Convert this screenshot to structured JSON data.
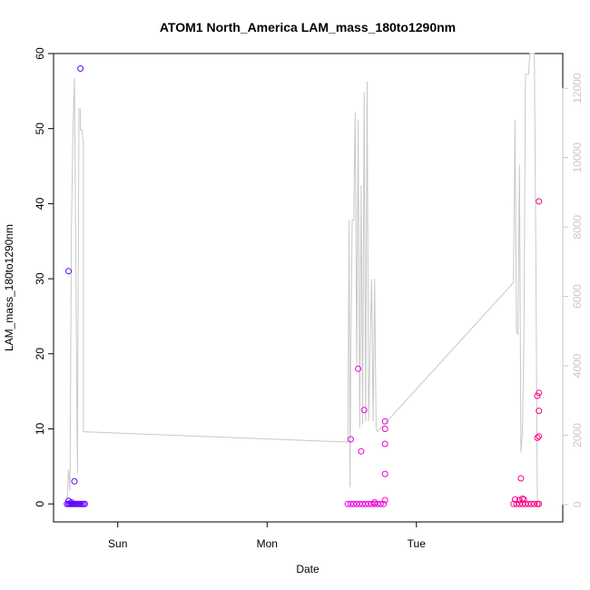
{
  "chart_data": {
    "type": "scatter",
    "title": "ATOM1 North_America LAM_mass_180to1290nm",
    "xlabel": "Date",
    "ylabel": "LAM_mass_180to1290nm",
    "x_unit": "days",
    "x_ticks": [
      {
        "label": "Sun",
        "value": 0
      },
      {
        "label": "Mon",
        "value": 1
      },
      {
        "label": "Tue",
        "value": 2
      }
    ],
    "xlim": [
      -0.43,
      2.98
    ],
    "ylim": [
      -2.4,
      60
    ],
    "y_ticks": [
      0,
      10,
      20,
      30,
      40,
      50,
      60
    ],
    "y2_ticks": [
      0,
      2000,
      4000,
      6000,
      8000,
      10000,
      12000
    ],
    "y2lim": [
      -500,
      13000
    ],
    "y2_color": "#c8c8c8",
    "grid": false,
    "legend": "none",
    "series": [
      {
        "marker": "open-circle",
        "color_gradient": [
          "#5a00ff",
          "#e600ff",
          "#ff0080"
        ],
        "points": [
          {
            "x": -0.33,
            "y": 31.0
          },
          {
            "x": -0.33,
            "y": 0.4
          },
          {
            "x": -0.31,
            "y": 0.2
          },
          {
            "x": -0.29,
            "y": 3.0
          },
          {
            "x": -0.25,
            "y": 58.0
          },
          {
            "x": -0.34,
            "y": 0.0
          },
          {
            "x": -0.33,
            "y": 0.0
          },
          {
            "x": -0.32,
            "y": 0.0
          },
          {
            "x": -0.31,
            "y": 0.0
          },
          {
            "x": -0.3,
            "y": 0.0
          },
          {
            "x": -0.29,
            "y": 0.0
          },
          {
            "x": -0.28,
            "y": 0.0
          },
          {
            "x": -0.27,
            "y": 0.0
          },
          {
            "x": -0.26,
            "y": 0.0
          },
          {
            "x": -0.25,
            "y": 0.0
          },
          {
            "x": -0.24,
            "y": 0.0
          },
          {
            "x": -0.23,
            "y": 0.0
          },
          {
            "x": -0.22,
            "y": 0.0
          },
          {
            "x": 1.56,
            "y": 8.6
          },
          {
            "x": 1.61,
            "y": 18.0
          },
          {
            "x": 1.63,
            "y": 7.0
          },
          {
            "x": 1.65,
            "y": 12.5
          },
          {
            "x": 1.79,
            "y": 11.0
          },
          {
            "x": 1.79,
            "y": 10.0
          },
          {
            "x": 1.79,
            "y": 8.0
          },
          {
            "x": 1.79,
            "y": 4.0
          },
          {
            "x": 1.79,
            "y": 0.5
          },
          {
            "x": 1.72,
            "y": 0.2
          },
          {
            "x": 1.54,
            "y": 0.0
          },
          {
            "x": 1.56,
            "y": 0.0
          },
          {
            "x": 1.58,
            "y": 0.0
          },
          {
            "x": 1.6,
            "y": 0.0
          },
          {
            "x": 1.62,
            "y": 0.0
          },
          {
            "x": 1.64,
            "y": 0.0
          },
          {
            "x": 1.66,
            "y": 0.0
          },
          {
            "x": 1.68,
            "y": 0.0
          },
          {
            "x": 1.7,
            "y": 0.0
          },
          {
            "x": 1.72,
            "y": 0.0
          },
          {
            "x": 1.74,
            "y": 0.0
          },
          {
            "x": 1.76,
            "y": 0.0
          },
          {
            "x": 1.78,
            "y": 0.0
          },
          {
            "x": 2.66,
            "y": 0.6
          },
          {
            "x": 2.69,
            "y": 0.5
          },
          {
            "x": 2.7,
            "y": 3.4
          },
          {
            "x": 2.71,
            "y": 0.7
          },
          {
            "x": 2.72,
            "y": 0.6
          },
          {
            "x": 2.82,
            "y": 40.3
          },
          {
            "x": 2.82,
            "y": 14.8
          },
          {
            "x": 2.81,
            "y": 14.4
          },
          {
            "x": 2.82,
            "y": 12.4
          },
          {
            "x": 2.82,
            "y": 9.0
          },
          {
            "x": 2.81,
            "y": 8.8
          },
          {
            "x": 2.65,
            "y": 0.0
          },
          {
            "x": 2.67,
            "y": 0.0
          },
          {
            "x": 2.69,
            "y": 0.0
          },
          {
            "x": 2.71,
            "y": 0.0
          },
          {
            "x": 2.73,
            "y": 0.0
          },
          {
            "x": 2.75,
            "y": 0.0
          },
          {
            "x": 2.77,
            "y": 0.0
          },
          {
            "x": 2.79,
            "y": 0.0
          },
          {
            "x": 2.81,
            "y": 0.0
          },
          {
            "x": 2.82,
            "y": 0.0
          }
        ]
      },
      {
        "axis": "right",
        "type": "line",
        "color": "#c8c8c8",
        "points": [
          [
            -0.34,
            0
          ],
          [
            -0.33,
            1000
          ],
          [
            -0.32,
            400
          ],
          [
            -0.31,
            8000
          ],
          [
            -0.3,
            10800
          ],
          [
            -0.29,
            12300
          ],
          [
            -0.28,
            6500
          ],
          [
            -0.27,
            900
          ],
          [
            -0.26,
            11400
          ],
          [
            -0.25,
            11400
          ],
          [
            -0.25,
            10800
          ],
          [
            -0.24,
            10800
          ],
          [
            -0.23,
            10400
          ],
          [
            -0.23,
            2100
          ],
          [
            1.54,
            1800
          ],
          [
            1.55,
            8200
          ],
          [
            1.555,
            500
          ],
          [
            1.56,
            4000
          ],
          [
            1.57,
            8200
          ],
          [
            1.58,
            8200
          ],
          [
            1.59,
            11300
          ],
          [
            1.6,
            4000
          ],
          [
            1.61,
            11100
          ],
          [
            1.62,
            2200
          ],
          [
            1.63,
            9200
          ],
          [
            1.64,
            2300
          ],
          [
            1.65,
            11900
          ],
          [
            1.66,
            2400
          ],
          [
            1.67,
            12200
          ],
          [
            1.68,
            2400
          ],
          [
            1.7,
            6500
          ],
          [
            1.71,
            2400
          ],
          [
            1.72,
            6500
          ],
          [
            1.73,
            2200
          ],
          [
            1.74,
            2100
          ],
          [
            2.65,
            6400
          ],
          [
            2.66,
            11100
          ],
          [
            2.67,
            5000
          ],
          [
            2.68,
            4900
          ],
          [
            2.69,
            9800
          ],
          [
            2.7,
            1500
          ],
          [
            2.71,
            2100
          ],
          [
            2.72,
            4800
          ],
          [
            2.73,
            12400
          ],
          [
            2.74,
            12400
          ],
          [
            2.75,
            12400
          ],
          [
            2.76,
            13000
          ],
          [
            2.79,
            13000
          ],
          [
            2.8,
            7000
          ],
          [
            2.81,
            0
          ]
        ]
      }
    ]
  }
}
